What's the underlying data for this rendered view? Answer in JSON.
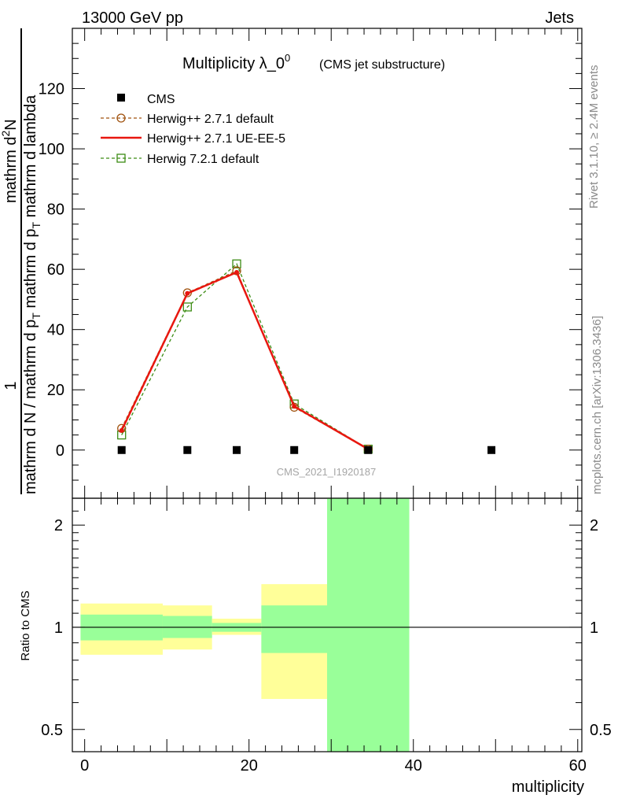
{
  "header": {
    "energy": "13000 GeV pp",
    "process": "Jets"
  },
  "side_labels": {
    "rivet": "Rivet 3.1.10, ≥ 2.4M events",
    "mcplots": "mcplots.cern.ch [arXiv:1306.3436]"
  },
  "chart_data": [
    {
      "type": "line",
      "title": "Multiplicity λ_0",
      "title_sup": "0",
      "subtitle": "(CMS jet substructure)",
      "watermark": "CMS_2021_I1920187",
      "ylabel": {
        "one": "1",
        "denominator": "mathrm d N / mathrm d p",
        "denominator_sub": "T",
        "denominator_tail": "mathrm d p",
        "denominator_tail_sub": "T",
        "denominator_end": "mathrm d lambda",
        "numerator": "mathrm d",
        "numerator_sup": "2",
        "numerator_end": "N"
      },
      "xlim": [
        -1.5,
        60.5
      ],
      "ylim": [
        -16,
        140
      ],
      "y_ticks": [
        0,
        20,
        40,
        60,
        80,
        100,
        120
      ],
      "y_tick_labels": [
        "0",
        "20",
        "40",
        "60",
        "80",
        "100",
        "120"
      ],
      "legend_position": "top-left",
      "series": [
        {
          "name": "CMS",
          "style": "markers",
          "marker": "filled-square",
          "color": "#000000",
          "x": [
            4.5,
            12.5,
            18.5,
            25.5,
            34.5,
            49.5
          ],
          "y": [
            0,
            0,
            0,
            0,
            0,
            0
          ]
        },
        {
          "name": "Herwig++ 2.7.1 default",
          "style": "dashed",
          "marker": "open-circle",
          "color": "#a0520e",
          "x": [
            4.5,
            12.5,
            18.5,
            25.5,
            34.5
          ],
          "y": [
            7.2,
            52.2,
            59.5,
            14.2,
            0.3
          ]
        },
        {
          "name": "Herwig++ 2.7.1 UE-EE-5",
          "style": "solid",
          "marker": "filled-dot",
          "color": "#e8170f",
          "x": [
            4.5,
            12.5,
            18.5,
            25.5,
            34.5
          ],
          "y": [
            6.5,
            52.0,
            59.0,
            14.5,
            0.3
          ]
        },
        {
          "name": "Herwig 7.2.1 default",
          "style": "dashed",
          "marker": "open-square",
          "color": "#3c8c14",
          "x": [
            4.5,
            12.5,
            18.5,
            25.5,
            34.5
          ],
          "y": [
            5.0,
            47.5,
            61.8,
            15.3,
            0.3
          ]
        }
      ]
    },
    {
      "type": "area",
      "ylabel": "Ratio to CMS",
      "xlabel": "multiplicity",
      "x_ticks": [
        0,
        20,
        40,
        60
      ],
      "x_tick_labels": [
        "0",
        "20",
        "40",
        "60"
      ],
      "xlim": [
        -1.5,
        60.5
      ],
      "ylim": [
        0.43,
        2.4
      ],
      "log_y": true,
      "y_ticks": [
        0.5,
        1,
        2
      ],
      "y_tick_labels": [
        "0.5",
        "1",
        "2"
      ],
      "reference_line": 1,
      "bands": [
        {
          "x0": -0.5,
          "x1": 9.5,
          "stat_lo": 0.915,
          "stat_hi": 1.09,
          "tot_lo": 0.83,
          "tot_hi": 1.175
        },
        {
          "x0": 9.5,
          "x1": 15.5,
          "stat_lo": 0.93,
          "stat_hi": 1.08,
          "tot_lo": 0.86,
          "tot_hi": 1.16
        },
        {
          "x0": 15.5,
          "x1": 21.5,
          "stat_lo": 0.97,
          "stat_hi": 1.03,
          "tot_lo": 0.95,
          "tot_hi": 1.06
        },
        {
          "x0": 21.5,
          "x1": 29.5,
          "stat_lo": 0.84,
          "stat_hi": 1.16,
          "tot_lo": 0.615,
          "tot_hi": 1.34
        },
        {
          "x0": 29.5,
          "x1": 39.5,
          "stat_lo": 0.43,
          "stat_hi": 2.4,
          "tot_lo": 0.43,
          "tot_hi": 2.4
        }
      ],
      "colors": {
        "stat": "#99ff99",
        "total": "#ffff99"
      }
    }
  ]
}
